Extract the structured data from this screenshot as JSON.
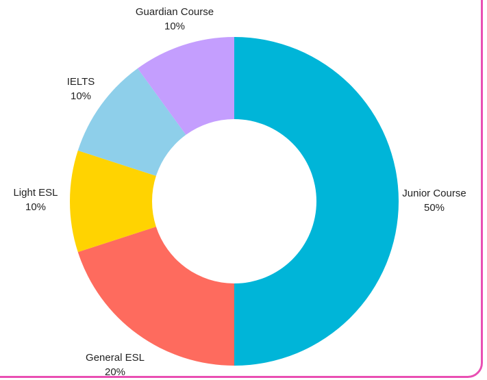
{
  "colors": {
    "frame_border": "#e94fb3",
    "background": "#ffffff",
    "label_text": "#222222"
  },
  "chart_data": {
    "type": "pie",
    "variant": "donut",
    "title": "",
    "legend": "none",
    "start_angle_deg": 0,
    "direction": "clockwise",
    "slices": [
      {
        "label": "Junior Course",
        "value": 50,
        "pct_label": "50%",
        "color": "#00b5d8"
      },
      {
        "label": "General ESL",
        "value": 20,
        "pct_label": "20%",
        "color": "#fe6b5e"
      },
      {
        "label": "Light ESL",
        "value": 10,
        "pct_label": "10%",
        "color": "#ffd301"
      },
      {
        "label": "IELTS",
        "value": 10,
        "pct_label": "10%",
        "color": "#8ecfea"
      },
      {
        "label": "Guardian Course",
        "value": 10,
        "pct_label": "10%",
        "color": "#c49efe"
      }
    ]
  }
}
